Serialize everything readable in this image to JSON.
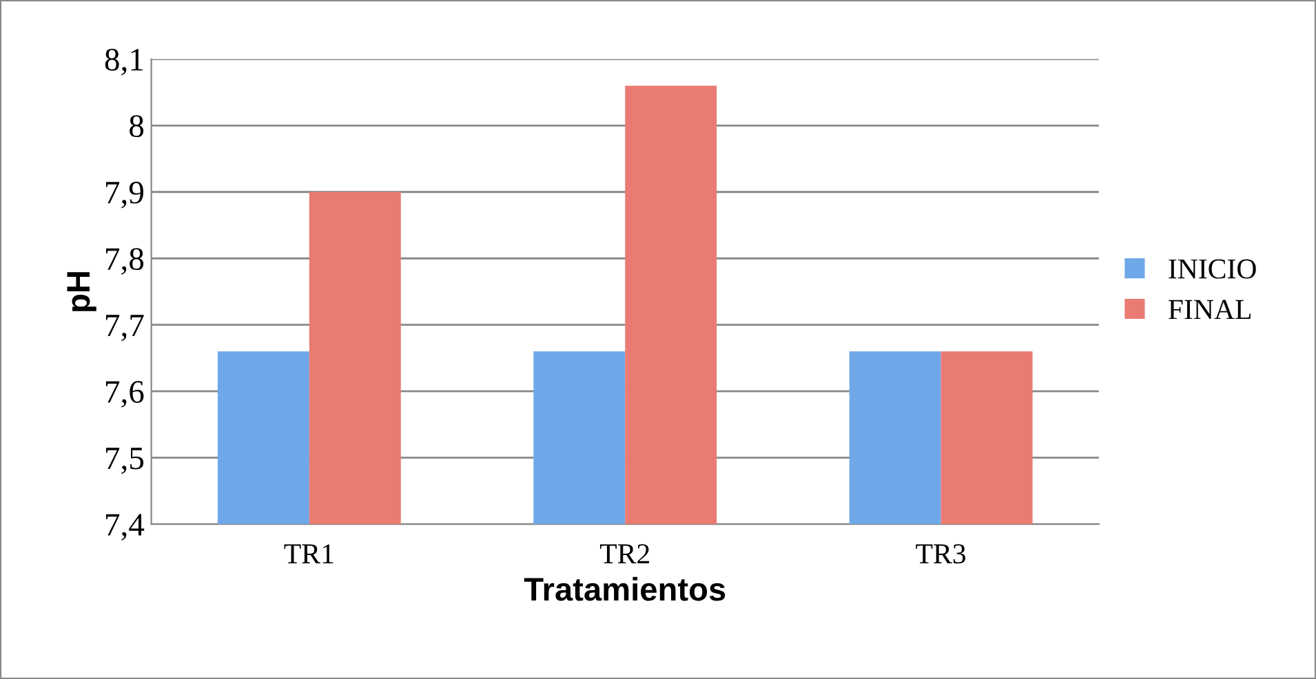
{
  "chart_data": {
    "type": "bar",
    "xlabel": "Tratamientos",
    "ylabel": "pH",
    "categories": [
      "TR1",
      "TR2",
      "TR3"
    ],
    "series": [
      {
        "name": "INICIO",
        "color": "#6fa8e8",
        "values": [
          7.66,
          7.66,
          7.66
        ]
      },
      {
        "name": "FINAL",
        "color": "#ea7b72",
        "values": [
          7.9,
          8.06,
          7.66
        ]
      }
    ],
    "ylim": [
      7.4,
      8.1
    ],
    "yticks": [
      {
        "value": 7.4,
        "label": "7,4"
      },
      {
        "value": 7.5,
        "label": "7,5"
      },
      {
        "value": 7.6,
        "label": "7,6"
      },
      {
        "value": 7.7,
        "label": "7,7"
      },
      {
        "value": 7.8,
        "label": "7,8"
      },
      {
        "value": 7.9,
        "label": "7,9"
      },
      {
        "value": 8,
        "label": "8"
      },
      {
        "value": 8.1,
        "label": "8,1"
      }
    ],
    "grid": "y",
    "legend": "right"
  }
}
